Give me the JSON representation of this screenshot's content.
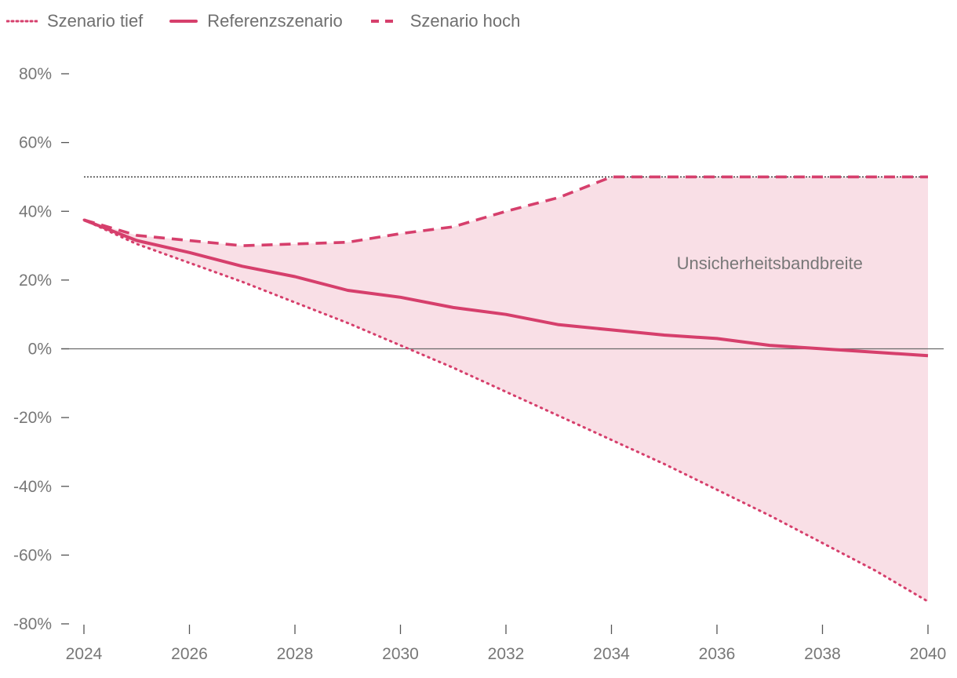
{
  "colors": {
    "series": "#d63f6c",
    "band": "#f9dfe6",
    "axis": "#555555",
    "text": "#777777",
    "ref_line": "#333333"
  },
  "chart_data": {
    "type": "line",
    "x": [
      2024,
      2025,
      2026,
      2027,
      2028,
      2029,
      2030,
      2031,
      2032,
      2033,
      2034,
      2035,
      2036,
      2037,
      2038,
      2039,
      2040
    ],
    "series": [
      {
        "name": "Szenario tief",
        "style": "dotted",
        "values": [
          37.5,
          30.5,
          25,
          19.5,
          13.5,
          7.5,
          1,
          -5.5,
          -12.5,
          -19.5,
          -26.5,
          -33.5,
          -41,
          -48.5,
          -56.5,
          -64.5,
          -73.5
        ]
      },
      {
        "name": "Referenzszenario",
        "style": "solid",
        "values": [
          37.5,
          31.5,
          28,
          24,
          21,
          17,
          15,
          12,
          10,
          7,
          5.5,
          4,
          3,
          1,
          0,
          -1,
          -2
        ]
      },
      {
        "name": "Szenario hoch",
        "style": "dashed",
        "values": [
          37.5,
          33,
          31.5,
          30,
          30.5,
          31,
          33.5,
          35.5,
          40,
          44,
          50,
          50,
          50,
          50,
          50,
          50,
          50
        ]
      }
    ],
    "band": {
      "between": [
        "Szenario tief",
        "Szenario hoch"
      ]
    },
    "reference_line": {
      "y": 50,
      "style": "dotted"
    },
    "annotations": [
      {
        "text": "Unsicherheitsbandbreite",
        "x": 2037.0,
        "y": 25
      }
    ],
    "x_ticks": [
      "2024",
      "2026",
      "2028",
      "2030",
      "2032",
      "2034",
      "2036",
      "2038",
      "2040"
    ],
    "y_ticks": [
      "80%",
      "60%",
      "40%",
      "20%",
      "0%",
      "-20%",
      "-40%",
      "-60%",
      "-80%"
    ],
    "ylim": [
      -80,
      80
    ],
    "xlim": [
      2024,
      2040
    ],
    "legend_position": "top-left",
    "grid": false,
    "title": "",
    "xlabel": "",
    "ylabel": ""
  }
}
